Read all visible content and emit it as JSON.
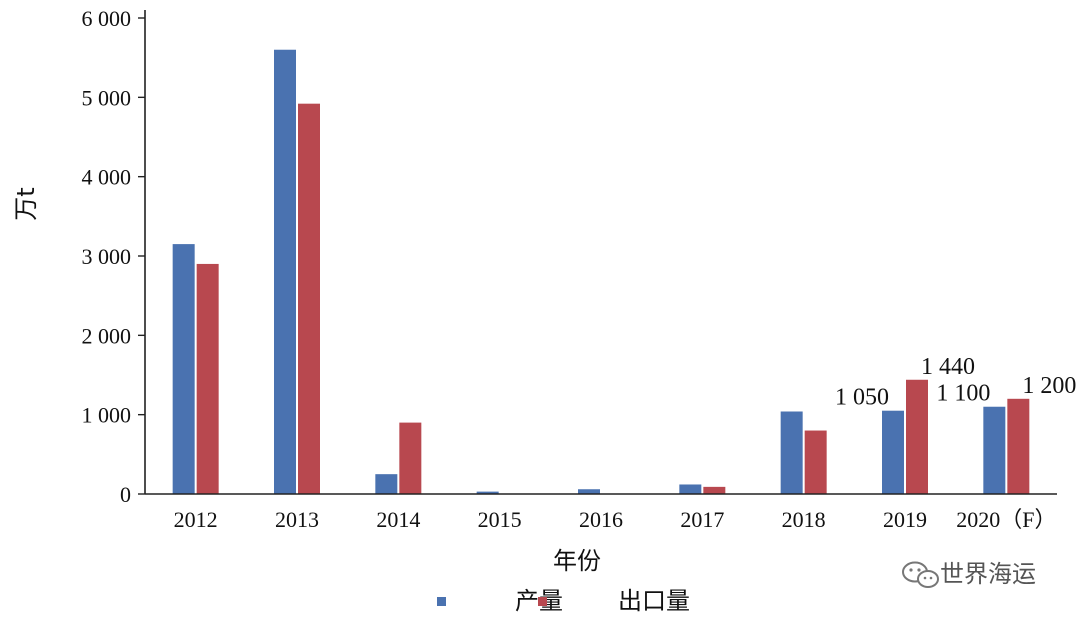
{
  "chart_data": {
    "type": "bar",
    "categories": [
      "2012",
      "2013",
      "2014",
      "2015",
      "2016",
      "2017",
      "2018",
      "2019",
      "2020（F）"
    ],
    "series": [
      {
        "name": "产量",
        "color": "#4a72b0",
        "values": [
          3150,
          5600,
          250,
          30,
          60,
          120,
          1040,
          1050,
          1100
        ]
      },
      {
        "name": "出口量",
        "color": "#b8484f",
        "values": [
          2900,
          4920,
          900,
          0,
          0,
          90,
          800,
          1440,
          1200
        ]
      }
    ],
    "data_labels": [
      {
        "category": "2019",
        "series": "产量",
        "text": "1 050"
      },
      {
        "category": "2019",
        "series": "出口量",
        "text": "1 440"
      },
      {
        "category": "2020（F）",
        "series": "产量",
        "text": "1 100"
      },
      {
        "category": "2020（F）",
        "series": "出口量",
        "text": "1 200"
      }
    ],
    "title": "",
    "xlabel": "年份",
    "ylabel": "万t",
    "ylim": [
      0,
      6000
    ],
    "yticks": [
      0,
      1000,
      2000,
      3000,
      4000,
      5000,
      6000
    ],
    "ytick_labels": [
      "0",
      "1 000",
      "2 000",
      "3 000",
      "4 000",
      "5 000",
      "6 000"
    ],
    "grid": false,
    "legend_position": "bottom"
  },
  "watermark": {
    "text": "世界海运",
    "icon": "wechat-icon"
  }
}
